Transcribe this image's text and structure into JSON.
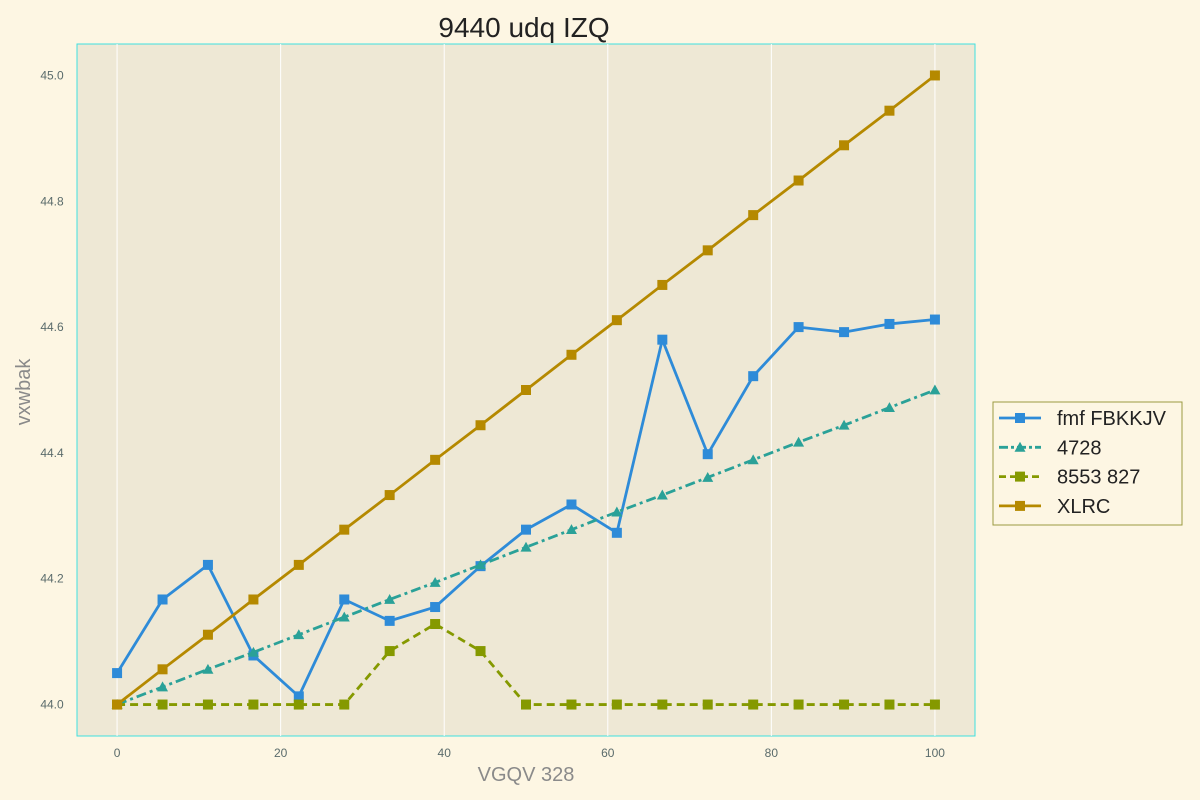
{
  "chart_data": {
    "type": "line",
    "title": "9440 udq IZQ",
    "xlabel": "VGQV 328",
    "ylabel": "vxwbak",
    "xlim": [
      -4.9,
      104.9
    ],
    "ylim": [
      43.95,
      45.05
    ],
    "xticks": [
      0,
      20,
      40,
      60,
      80,
      100
    ],
    "yticks": [
      44.0,
      44.2,
      44.4,
      44.6,
      44.8,
      45.0
    ],
    "x": [
      0,
      5.56,
      11.11,
      16.67,
      22.22,
      27.78,
      33.33,
      38.89,
      44.44,
      50.0,
      55.56,
      61.11,
      66.67,
      72.22,
      77.78,
      83.33,
      88.89,
      94.44,
      100
    ],
    "grid": "vertical",
    "legend": "right",
    "series": [
      {
        "name": "fmf FBKKJV",
        "color": "#2e8bd8",
        "dash": "solid",
        "marker": "square",
        "values": [
          44.05,
          44.167,
          44.222,
          44.078,
          44.013,
          44.167,
          44.133,
          44.155,
          44.22,
          44.278,
          44.318,
          44.273,
          44.58,
          44.398,
          44.522,
          44.6,
          44.592,
          44.605,
          44.612
        ]
      },
      {
        "name": "4728",
        "color": "#2aa198",
        "dash": "dashdot",
        "marker": "triangle",
        "values": [
          44.0,
          44.028,
          44.056,
          44.083,
          44.111,
          44.139,
          44.167,
          44.194,
          44.222,
          44.25,
          44.278,
          44.306,
          44.333,
          44.361,
          44.389,
          44.417,
          44.444,
          44.472,
          44.5
        ]
      },
      {
        "name": "8553 827",
        "color": "#859900",
        "dash": "dashed",
        "marker": "square",
        "values": [
          44.0,
          44.0,
          44.0,
          44.0,
          44.0,
          44.0,
          44.085,
          44.128,
          44.085,
          44.0,
          44.0,
          44.0,
          44.0,
          44.0,
          44.0,
          44.0,
          44.0,
          44.0,
          44.0
        ]
      },
      {
        "name": "XLRC",
        "color": "#b58900",
        "dash": "solid",
        "marker": "square",
        "values": [
          44.0,
          44.056,
          44.111,
          44.167,
          44.222,
          44.278,
          44.333,
          44.389,
          44.444,
          44.5,
          44.556,
          44.611,
          44.667,
          44.722,
          44.778,
          44.833,
          44.889,
          44.944,
          45.0
        ]
      }
    ]
  }
}
